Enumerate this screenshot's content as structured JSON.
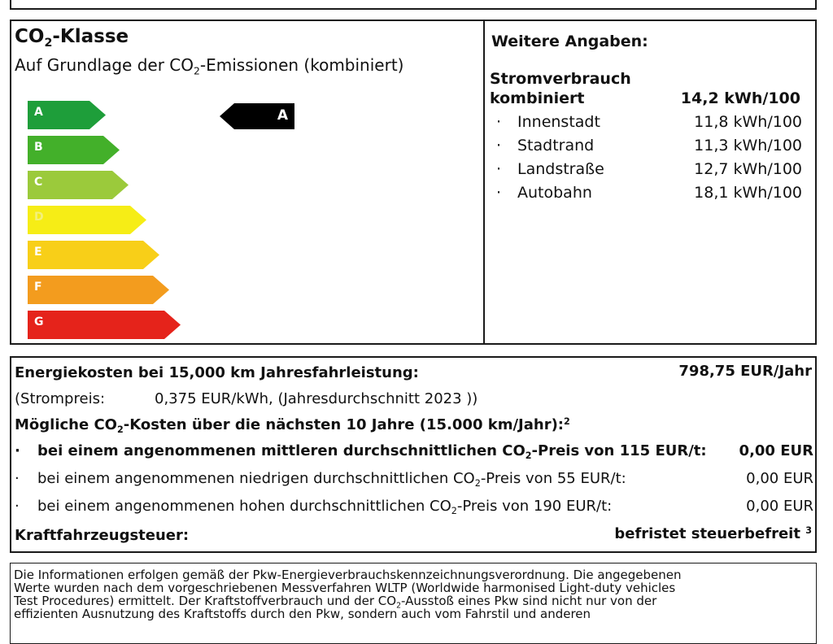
{
  "co2_class": {
    "title_part1": "CO",
    "title_sub": "2",
    "title_part2": "-Klasse",
    "subtitle_part1": "Auf Grundlage der CO",
    "subtitle_sub": "2",
    "subtitle_part2": "-Emissionen (kombiniert)",
    "scale": [
      {
        "label": "A",
        "color": "#1e9e3a"
      },
      {
        "label": "B",
        "color": "#43b02a"
      },
      {
        "label": "C",
        "color": "#9bca3b"
      },
      {
        "label": "D",
        "color": "#f6ed16"
      },
      {
        "label": "E",
        "color": "#f8cf18"
      },
      {
        "label": "F",
        "color": "#f39c1e"
      },
      {
        "label": "G",
        "color": "#e5231b"
      }
    ],
    "indicator_label": "A",
    "indicator_color": "#000000"
  },
  "further": {
    "heading": "Weitere Angaben:",
    "consumption_label_line1": "Stromverbrauch",
    "consumption_label_line2": "kombiniert",
    "consumption_value": "14,2 kWh/100",
    "items": [
      {
        "label": "Innenstadt",
        "value": "11,8 kWh/100"
      },
      {
        "label": "Stadtrand",
        "value": "11,3 kWh/100"
      },
      {
        "label": "Landstraße",
        "value": "12,7 kWh/100"
      },
      {
        "label": "Autobahn",
        "value": "18,1 kWh/100"
      }
    ],
    "bullet": "·"
  },
  "costs": {
    "energy_label": "Energiekosten bei 15,000 km Jahresfahrleistung:",
    "energy_value": "798,75 EUR/Jahr",
    "price_label": "(Strompreis:",
    "price_value": "0,375 EUR/kWh, (Jahresdurchschnitt 2023 ))",
    "co2_heading_part1": "Mögliche CO",
    "co2_heading_sub": "2",
    "co2_heading_part2": "-Kosten über die nächsten 10 Jahre (15.000 km/Jahr):",
    "co2_heading_sup": "2",
    "rows": [
      {
        "text_part1": "bei einem angenommenen mittleren durchschnittlichen CO",
        "sub": "2",
        "text_part2": "-Preis von 115 EUR/t:",
        "value": "0,00 EUR"
      },
      {
        "text_part1": "bei einem angenommenen niedrigen durchschnittlichen CO",
        "sub": "2",
        "text_part2": "-Preis von 55 EUR/t:",
        "value": "0,00 EUR"
      },
      {
        "text_part1": "bei einem angenommenen hohen durchschnittlichen CO",
        "sub": "2",
        "text_part2": "-Preis von 190 EUR/t:",
        "value": "0,00 EUR"
      }
    ],
    "tax_label": "Kraftfahrzeugsteuer:",
    "tax_value": "befristet steuerbefreit",
    "tax_sup": "3"
  },
  "footer": {
    "line1": "Die Informationen erfolgen gemäß der Pkw-Energieverbrauchskennzeichnungsverordnung. Die angegebenen",
    "line2": "Werte wurden nach dem vorgeschriebenen Messverfahren WLTP (Worldwide harmonised Light-duty vehicles",
    "line3_part1": "Test Procedures) ermittelt. Der Kraftstoffverbrauch und der CO",
    "line3_sub": "2",
    "line3_part2": "-Ausstoß eines Pkw sind nicht nur von der",
    "line4": "effizienten Ausnutzung des Kraftstoffs durch den Pkw, sondern auch vom Fahrstil und anderen"
  }
}
